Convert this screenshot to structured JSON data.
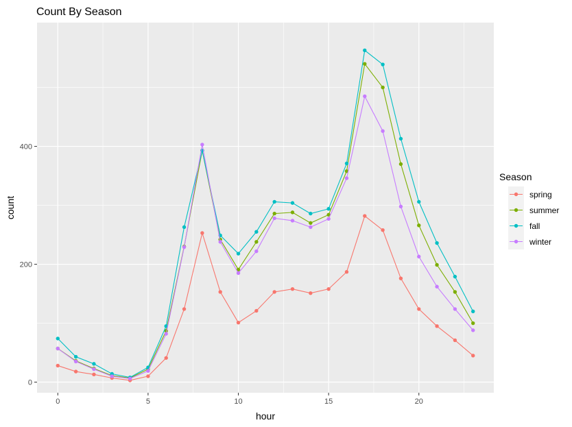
{
  "chart_data": {
    "type": "line",
    "title": "Count By Season",
    "xlabel": "hour",
    "ylabel": "count",
    "xlim": [
      -1.15,
      24.15
    ],
    "ylim": [
      -18,
      610
    ],
    "x_ticks": [
      0,
      5,
      10,
      15,
      20
    ],
    "y_ticks": [
      0,
      200,
      400
    ],
    "grid": true,
    "legend": {
      "title": "Season",
      "placement": "right"
    },
    "x": [
      0,
      1,
      2,
      3,
      4,
      5,
      6,
      7,
      8,
      9,
      10,
      11,
      12,
      13,
      14,
      15,
      16,
      17,
      18,
      19,
      20,
      21,
      22,
      23
    ],
    "series": [
      {
        "name": "spring",
        "color": "#F8766D",
        "values": [
          28,
          18,
          13,
          7,
          3,
          10,
          41,
          124,
          253,
          153,
          101,
          121,
          153,
          158,
          151,
          158,
          187,
          282,
          258,
          176,
          124,
          95,
          71,
          45
        ]
      },
      {
        "name": "summer",
        "color": "#7CAE00",
        "values": [
          57,
          36,
          23,
          11,
          7,
          22,
          87,
          230,
          393,
          242,
          191,
          238,
          286,
          288,
          270,
          284,
          358,
          540,
          500,
          370,
          266,
          199,
          153,
          100
        ]
      },
      {
        "name": "fall",
        "color": "#00BFC4",
        "values": [
          74,
          43,
          31,
          14,
          8,
          25,
          95,
          263,
          393,
          249,
          218,
          255,
          306,
          304,
          286,
          294,
          371,
          563,
          539,
          413,
          306,
          236,
          179,
          120
        ]
      },
      {
        "name": "winter",
        "color": "#C77CFF",
        "values": [
          57,
          35,
          22,
          10,
          6,
          19,
          82,
          229,
          403,
          238,
          185,
          222,
          278,
          274,
          263,
          277,
          346,
          485,
          426,
          298,
          213,
          162,
          124,
          88
        ]
      }
    ]
  }
}
